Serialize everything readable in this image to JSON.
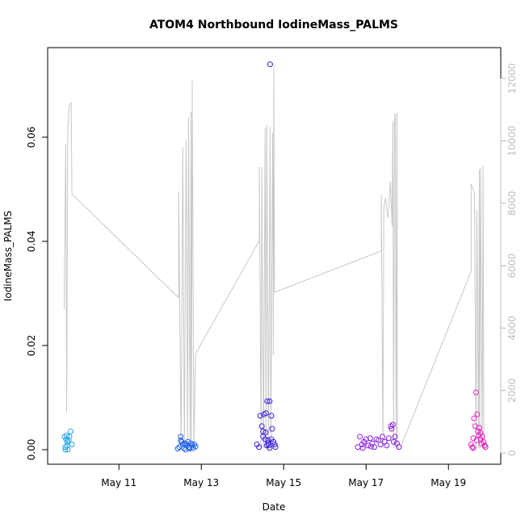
{
  "chart_data": {
    "type": "scatter",
    "title": "ATOM4 Northbound IodineMass_PALMS",
    "xlabel": "Date",
    "ylabel": "IodineMass_PALMS",
    "xlim": [
      9.27,
      20.27
    ],
    "xticks": [
      {
        "value": 11,
        "label": "May 11"
      },
      {
        "value": 13,
        "label": "May 13"
      },
      {
        "value": 15,
        "label": "May 15"
      },
      {
        "value": 17,
        "label": "May 17"
      },
      {
        "value": 19,
        "label": "May 19"
      }
    ],
    "ylim": [
      -0.0028,
      0.0772
    ],
    "yticks": [
      {
        "value": 0,
        "label": "0.00"
      },
      0.02,
      0.04,
      0.06
    ],
    "y2lim": [
      -362,
      12988
    ],
    "y2ticks": [
      0,
      2000,
      4000,
      6000,
      8000,
      10000,
      12000
    ],
    "y2color": "#bebebe",
    "series": [
      {
        "color": "#29a3e8",
        "x": [
          9.68,
          9.7,
          9.72,
          9.73,
          9.75,
          9.76,
          9.78,
          9.8,
          9.83,
          9.86,
          9.7,
          9.74
        ],
        "values": [
          0.0025,
          0.0005,
          0.002,
          0.0027,
          0.0015,
          0.0,
          0.0018,
          0.0025,
          0.0035,
          0.001,
          0.0,
          0.0008
        ]
      },
      {
        "color": "#1f5fe8",
        "x": [
          12.43,
          12.47,
          12.5,
          12.52,
          12.55,
          12.58,
          12.6,
          12.62,
          12.65,
          12.68,
          12.7,
          12.72,
          12.75,
          12.78,
          12.8,
          12.83,
          12.86,
          12.5,
          12.62,
          12.7
        ],
        "values": [
          0.0002,
          0.0005,
          0.0025,
          0.0015,
          0.001,
          0.0003,
          0.0012,
          0.0,
          0.0008,
          0.0015,
          0.0005,
          0.0002,
          0.0012,
          0.0008,
          0.0003,
          0.001,
          0.0006,
          0.0018,
          0.0011,
          0.0004
        ]
      },
      {
        "color": "#3a1fe0",
        "x": [
          14.35,
          14.4,
          14.43,
          14.47,
          14.5,
          14.52,
          14.55,
          14.57,
          14.6,
          14.62,
          14.64,
          14.66,
          14.67,
          14.7,
          14.72,
          14.75,
          14.78,
          14.8,
          14.5,
          14.56,
          14.62,
          14.7,
          14.66,
          14.59
        ],
        "values": [
          0.001,
          0.0005,
          0.0065,
          0.0045,
          0.0035,
          0.0068,
          0.002,
          0.007,
          0.0093,
          0.0012,
          0.0008,
          0.0093,
          0.074,
          0.0065,
          0.004,
          0.0015,
          0.001,
          0.0005,
          0.0025,
          0.0033,
          0.0018,
          0.002,
          0.0003,
          0.0008
        ]
      },
      {
        "color": "#8a1fe0",
        "x": [
          16.8,
          16.85,
          16.9,
          16.95,
          17.0,
          17.05,
          17.1,
          17.15,
          17.2,
          17.25,
          17.3,
          17.35,
          17.4,
          17.45,
          17.5,
          17.55,
          17.6,
          17.65,
          17.7,
          17.75,
          17.8,
          17.62,
          17.67,
          16.92,
          17.12
        ],
        "values": [
          0.0005,
          0.0025,
          0.001,
          0.0015,
          0.002,
          0.0008,
          0.0022,
          0.0012,
          0.0005,
          0.002,
          0.0018,
          0.001,
          0.0025,
          0.0015,
          0.0008,
          0.0022,
          0.0045,
          0.0048,
          0.0025,
          0.0012,
          0.0005,
          0.004,
          0.0015,
          0.0003,
          0.0006
        ]
      },
      {
        "color": "#e81fc8",
        "x": [
          19.55,
          19.58,
          19.6,
          19.62,
          19.65,
          19.67,
          19.7,
          19.72,
          19.75,
          19.78,
          19.8,
          19.82,
          19.85,
          19.88,
          19.9,
          19.74,
          19.68,
          19.6,
          19.78
        ],
        "values": [
          0.001,
          0.0005,
          0.0022,
          0.006,
          0.0045,
          0.011,
          0.0068,
          0.0035,
          0.0042,
          0.002,
          0.0012,
          0.0025,
          0.0015,
          0.0008,
          0.0005,
          0.0028,
          0.0018,
          0.0003,
          0.0032
        ]
      },
      {
        "type": "line",
        "axis": "y2",
        "color": "#c8c8c8",
        "x": [
          9.67,
          9.71,
          9.73,
          9.76,
          9.8,
          9.84,
          9.86,
          12.45,
          12.45,
          12.51,
          12.55,
          12.59,
          12.63,
          12.67,
          12.69,
          12.73,
          12.75,
          12.76,
          12.78,
          12.82,
          12.86,
          14.41,
          14.41,
          14.45,
          14.47,
          14.51,
          14.55,
          14.57,
          14.59,
          14.63,
          14.67,
          14.69,
          14.73,
          14.75,
          14.76,
          14.78,
          17.37,
          17.37,
          17.41,
          17.43,
          17.47,
          17.53,
          17.59,
          17.63,
          17.65,
          17.67,
          17.69,
          17.71,
          17.73,
          17.75,
          17.76,
          17.84,
          19.55,
          19.55,
          19.63,
          19.67,
          19.69,
          19.73,
          19.75,
          19.76,
          19.78,
          19.82,
          19.84,
          19.86
        ],
        "values": [
          4600,
          9900,
          1300,
          10400,
          11150,
          11230,
          8300,
          4970,
          8380,
          150,
          9800,
          150,
          10060,
          150,
          10760,
          150,
          10940,
          150,
          11930,
          150,
          3180,
          6800,
          9160,
          150,
          9160,
          150,
          10400,
          150,
          10500,
          150,
          10450,
          150,
          10260,
          3130,
          12440,
          5150,
          6470,
          8280,
          150,
          7830,
          8180,
          7530,
          8700,
          7270,
          10630,
          150,
          10630,
          10890,
          150,
          10890,
          150,
          200,
          5820,
          8620,
          8310,
          150,
          7790,
          150,
          9080,
          150,
          9130,
          150,
          9210,
          150
        ]
      }
    ]
  }
}
